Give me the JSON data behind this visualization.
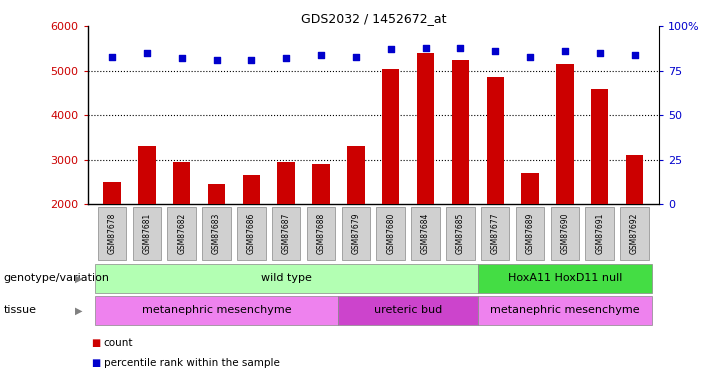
{
  "title": "GDS2032 / 1452672_at",
  "samples": [
    "GSM87678",
    "GSM87681",
    "GSM87682",
    "GSM87683",
    "GSM87686",
    "GSM87687",
    "GSM87688",
    "GSM87679",
    "GSM87680",
    "GSM87684",
    "GSM87685",
    "GSM87677",
    "GSM87689",
    "GSM87690",
    "GSM87691",
    "GSM87692"
  ],
  "counts": [
    2500,
    3300,
    2950,
    2450,
    2650,
    2950,
    2900,
    3300,
    5050,
    5400,
    5250,
    4850,
    2700,
    5150,
    4600,
    3100
  ],
  "percentile_ranks": [
    83,
    85,
    82,
    81,
    81,
    82,
    84,
    83,
    87,
    88,
    88,
    86,
    83,
    86,
    85,
    84
  ],
  "ymin": 2000,
  "ymax": 6000,
  "yticks": [
    2000,
    3000,
    4000,
    5000,
    6000
  ],
  "right_yticks": [
    0,
    25,
    50,
    75,
    100
  ],
  "bar_color": "#cc0000",
  "dot_color": "#0000cc",
  "bg_color": "#ffffff",
  "genotype_groups": [
    {
      "label": "wild type",
      "start": 0,
      "end": 10,
      "color": "#b3ffb3"
    },
    {
      "label": "HoxA11 HoxD11 null",
      "start": 11,
      "end": 15,
      "color": "#44dd44"
    }
  ],
  "tissue_groups": [
    {
      "label": "metanephric mesenchyme",
      "start": 0,
      "end": 6,
      "color": "#ee82ee"
    },
    {
      "label": "ureteric bud",
      "start": 7,
      "end": 10,
      "color": "#cc44cc"
    },
    {
      "label": "metanephric mesenchyme",
      "start": 11,
      "end": 15,
      "color": "#ee82ee"
    }
  ],
  "genotype_label": "genotype/variation",
  "tissue_label": "tissue",
  "legend_count_label": "count",
  "legend_pct_label": "percentile rank within the sample"
}
